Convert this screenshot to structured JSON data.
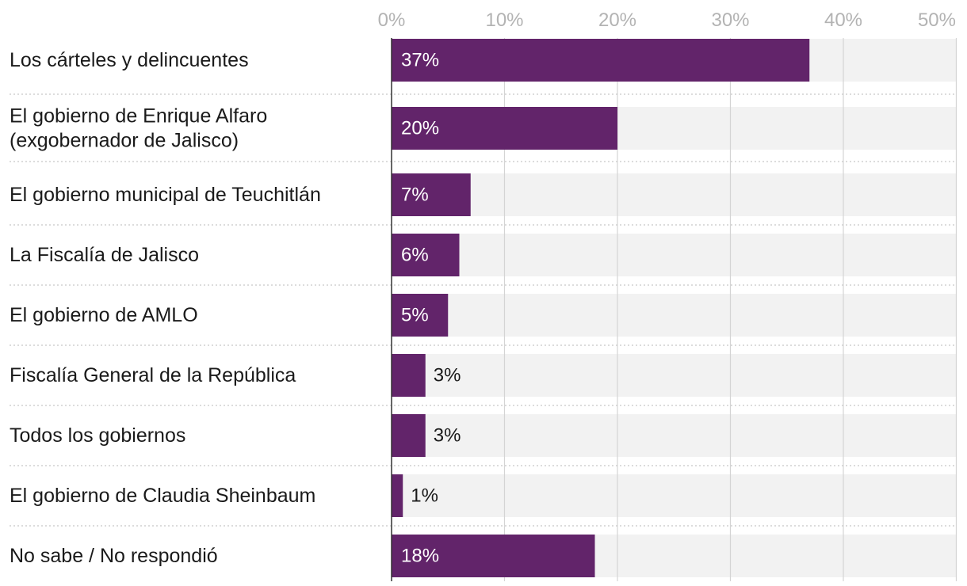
{
  "chart_data": {
    "type": "bar",
    "orientation": "horizontal",
    "title": "",
    "xlabel": "",
    "ylabel": "",
    "xlim": [
      0,
      50
    ],
    "ticks": [
      0,
      10,
      20,
      30,
      40,
      50
    ],
    "tick_labels": [
      "0%",
      "10%",
      "20%",
      "30%",
      "40%",
      "50%"
    ],
    "grid": true,
    "categories": [
      [
        "Los cárteles y delincuentes"
      ],
      [
        "El gobierno de Enrique Alfaro",
        "(exgobernador de Jalisco)"
      ],
      [
        "El gobierno municipal de Teuchitlán"
      ],
      [
        "La Fiscalía de Jalisco"
      ],
      [
        "El gobierno de AMLO"
      ],
      [
        "Fiscalía General de la República"
      ],
      [
        "Todos los gobiernos"
      ],
      [
        "El gobierno de Claudia Sheinbaum"
      ],
      [
        "No sabe / No respondió"
      ]
    ],
    "values": [
      37,
      20,
      7,
      6,
      5,
      3,
      3,
      1,
      18
    ],
    "value_labels": [
      "37%",
      "20%",
      "7%",
      "6%",
      "5%",
      "3%",
      "3%",
      "1%",
      "18%"
    ]
  },
  "colors": {
    "bar": "#62246a",
    "track": "#f2f2f2",
    "grid": "#d4d4d4",
    "axis": "#333333",
    "separator": "#c8c8c8",
    "tick_text": "#b3b3b3",
    "label_text": "#1a1a1a",
    "value_inside": "#ffffff",
    "value_outside": "#1a1a1a"
  }
}
